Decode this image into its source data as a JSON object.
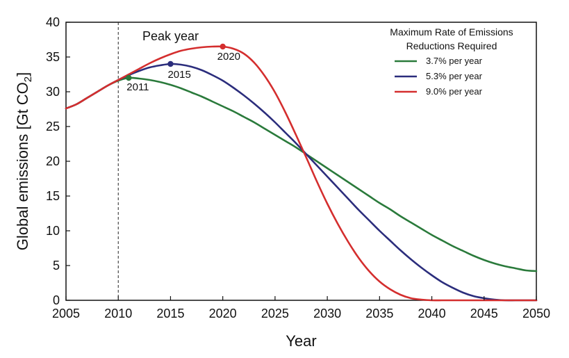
{
  "chart_data": {
    "type": "line",
    "title": "",
    "xlabel": "Year",
    "ylabel": "Global emissions [Gt CO",
    "ylabel_subscript": "2",
    "ylabel_suffix": "]",
    "xlim": [
      2005,
      2050
    ],
    "ylim": [
      0,
      40
    ],
    "x_ticks": [
      2005,
      2010,
      2015,
      2020,
      2025,
      2030,
      2035,
      2040,
      2045,
      2050
    ],
    "y_ticks": [
      0,
      5,
      10,
      15,
      20,
      25,
      30,
      35,
      40
    ],
    "x_tick_labels": [
      "2005",
      "2010",
      "2015",
      "2020",
      "2025",
      "2030",
      "2035",
      "2040",
      "2045",
      "2050"
    ],
    "y_tick_labels": [
      "0",
      "5",
      "10",
      "15",
      "20",
      "25",
      "30",
      "35",
      "40"
    ],
    "grid": false,
    "legend": {
      "title_line1": "Maximum Rate of Emissions",
      "title_line2": "Reductions Required",
      "placement": "top-right"
    },
    "annotation": {
      "text": "Peak year",
      "vline_x": 2010
    },
    "series": [
      {
        "name": "3.7% per year",
        "color": "#2a7a3b",
        "peak": {
          "x": 2011,
          "y": 32,
          "label": "2011"
        },
        "x": [
          2005,
          2006,
          2007,
          2008,
          2009,
          2010,
          2011,
          2012,
          2013,
          2014,
          2015,
          2016,
          2017,
          2018,
          2019,
          2020,
          2021,
          2022,
          2023,
          2024,
          2025,
          2026,
          2027,
          2028,
          2029,
          2030,
          2031,
          2032,
          2033,
          2034,
          2035,
          2036,
          2037,
          2038,
          2039,
          2040,
          2041,
          2042,
          2043,
          2044,
          2045,
          2046,
          2047,
          2048,
          2049,
          2050
        ],
        "y": [
          27.6,
          28.2,
          29.1,
          30.0,
          30.9,
          31.6,
          32.0,
          31.9,
          31.7,
          31.4,
          31.0,
          30.5,
          29.9,
          29.3,
          28.6,
          27.9,
          27.2,
          26.4,
          25.6,
          24.7,
          23.8,
          22.9,
          22.0,
          21.0,
          20.0,
          19.0,
          18.0,
          17.0,
          16.0,
          15.0,
          14.0,
          13.1,
          12.1,
          11.2,
          10.3,
          9.4,
          8.6,
          7.8,
          7.1,
          6.4,
          5.8,
          5.3,
          4.9,
          4.6,
          4.3,
          4.2
        ]
      },
      {
        "name": "5.3% per year",
        "color": "#2b2d7c",
        "peak": {
          "x": 2015,
          "y": 34,
          "label": "2015"
        },
        "x": [
          2005,
          2006,
          2007,
          2008,
          2009,
          2010,
          2011,
          2012,
          2013,
          2014,
          2015,
          2016,
          2017,
          2018,
          2019,
          2020,
          2021,
          2022,
          2023,
          2024,
          2025,
          2026,
          2027,
          2028,
          2029,
          2030,
          2031,
          2032,
          2033,
          2034,
          2035,
          2036,
          2037,
          2038,
          2039,
          2040,
          2041,
          2042,
          2043,
          2044,
          2045,
          2046,
          2047,
          2048,
          2049,
          2050
        ],
        "y": [
          27.6,
          28.2,
          29.1,
          30.0,
          30.9,
          31.7,
          32.4,
          33.0,
          33.5,
          33.8,
          34.0,
          33.9,
          33.6,
          33.1,
          32.4,
          31.6,
          30.6,
          29.5,
          28.3,
          27.0,
          25.6,
          24.1,
          22.6,
          21.0,
          19.4,
          17.8,
          16.2,
          14.6,
          13.0,
          11.5,
          10.0,
          8.6,
          7.2,
          5.9,
          4.7,
          3.6,
          2.6,
          1.8,
          1.1,
          0.6,
          0.3,
          0.1,
          0.0,
          0.0,
          0.0,
          0.0
        ]
      },
      {
        "name": "9.0% per year",
        "color": "#d42e2e",
        "peak": {
          "x": 2020,
          "y": 36.5,
          "label": "2020"
        },
        "x": [
          2005,
          2006,
          2007,
          2008,
          2009,
          2010,
          2011,
          2012,
          2013,
          2014,
          2015,
          2016,
          2017,
          2018,
          2019,
          2020,
          2021,
          2022,
          2023,
          2024,
          2025,
          2026,
          2027,
          2028,
          2029,
          2030,
          2031,
          2032,
          2033,
          2034,
          2035,
          2036,
          2037,
          2038,
          2039,
          2040,
          2041,
          2042,
          2043,
          2044,
          2045,
          2046,
          2047,
          2048,
          2049,
          2050
        ],
        "y": [
          27.6,
          28.2,
          29.1,
          30.0,
          30.9,
          31.7,
          32.5,
          33.3,
          34.1,
          34.8,
          35.4,
          35.9,
          36.2,
          36.4,
          36.5,
          36.5,
          36.2,
          35.5,
          34.2,
          32.3,
          29.9,
          27.0,
          23.8,
          20.5,
          17.1,
          13.9,
          11.0,
          8.4,
          6.1,
          4.2,
          2.7,
          1.6,
          0.8,
          0.3,
          0.1,
          0.0,
          0.0,
          0.0,
          0.0,
          0.0,
          0.0,
          0.0,
          0.0,
          0.0,
          0.0,
          0.0
        ]
      }
    ]
  }
}
